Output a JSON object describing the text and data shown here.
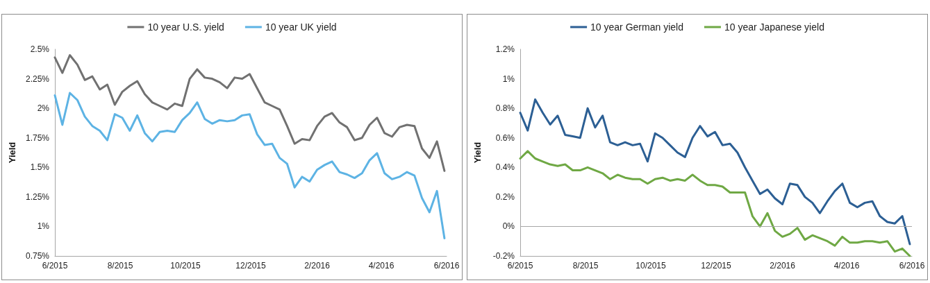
{
  "chart_data": [
    {
      "type": "line",
      "ylabel": "Yield",
      "legend": "top",
      "line_style": "solid",
      "x": [
        "2015-06-01",
        "2015-06-08",
        "2015-06-15",
        "2015-06-22",
        "2015-06-29",
        "2015-07-06",
        "2015-07-13",
        "2015-07-20",
        "2015-07-27",
        "2015-08-03",
        "2015-08-10",
        "2015-08-17",
        "2015-08-24",
        "2015-08-31",
        "2015-09-07",
        "2015-09-14",
        "2015-09-21",
        "2015-09-28",
        "2015-10-05",
        "2015-10-12",
        "2015-10-19",
        "2015-10-26",
        "2015-11-02",
        "2015-11-09",
        "2015-11-16",
        "2015-11-23",
        "2015-11-30",
        "2015-12-07",
        "2015-12-14",
        "2015-12-21",
        "2015-12-28",
        "2016-01-04",
        "2016-01-11",
        "2016-01-18",
        "2016-01-25",
        "2016-02-01",
        "2016-02-08",
        "2016-02-15",
        "2016-02-22",
        "2016-02-29",
        "2016-03-07",
        "2016-03-14",
        "2016-03-21",
        "2016-03-28",
        "2016-04-04",
        "2016-04-11",
        "2016-04-18",
        "2016-04-25",
        "2016-05-02",
        "2016-05-09",
        "2016-05-16",
        "2016-05-23",
        "2016-05-30"
      ],
      "xlim": [
        "2015-06",
        "2016-06"
      ],
      "xticks": [
        {
          "value": "2015-06",
          "label": "6/2015"
        },
        {
          "value": "2015-08",
          "label": "8/2015"
        },
        {
          "value": "2015-10",
          "label": "10/2015"
        },
        {
          "value": "2015-12",
          "label": "12/2015"
        },
        {
          "value": "2016-02",
          "label": "2/2016"
        },
        {
          "value": "2016-04",
          "label": "4/2016"
        },
        {
          "value": "2016-06",
          "label": "6/2016"
        }
      ],
      "ylim": [
        0.75,
        2.5
      ],
      "yticks": [
        {
          "value": 0.75,
          "label": "0.75%"
        },
        {
          "value": 1,
          "label": "1%"
        },
        {
          "value": 1.25,
          "label": "1.25%"
        },
        {
          "value": 1.5,
          "label": "1.5%"
        },
        {
          "value": 1.75,
          "label": "1.75%"
        },
        {
          "value": 2,
          "label": "2%"
        },
        {
          "value": 2.25,
          "label": "2.25%"
        },
        {
          "value": 2.5,
          "label": "2.5%"
        }
      ],
      "series": [
        {
          "name": "10 year U.S. yield",
          "color": "#717171",
          "values": [
            2.43,
            2.3,
            2.45,
            2.37,
            2.24,
            2.27,
            2.16,
            2.2,
            2.03,
            2.14,
            2.19,
            2.23,
            2.12,
            2.05,
            2.02,
            1.99,
            2.04,
            2.02,
            2.25,
            2.33,
            2.26,
            2.25,
            2.22,
            2.17,
            2.26,
            2.25,
            2.29,
            2.17,
            2.05,
            2.02,
            1.99,
            1.85,
            1.7,
            1.74,
            1.73,
            1.85,
            1.93,
            1.96,
            1.88,
            1.84,
            1.73,
            1.75,
            1.86,
            1.92,
            1.79,
            1.76,
            1.84,
            1.86,
            1.85,
            1.66,
            1.58,
            1.72,
            1.47
          ]
        },
        {
          "name": "10 year UK yield",
          "color": "#5db3e4",
          "values": [
            2.11,
            1.86,
            2.13,
            2.07,
            1.93,
            1.85,
            1.81,
            1.73,
            1.95,
            1.92,
            1.81,
            1.94,
            1.79,
            1.72,
            1.8,
            1.81,
            1.8,
            1.9,
            1.96,
            2.05,
            1.91,
            1.87,
            1.9,
            1.89,
            1.9,
            1.94,
            1.95,
            1.78,
            1.69,
            1.7,
            1.58,
            1.53,
            1.33,
            1.42,
            1.38,
            1.48,
            1.52,
            1.55,
            1.46,
            1.44,
            1.41,
            1.45,
            1.56,
            1.62,
            1.45,
            1.4,
            1.42,
            1.46,
            1.43,
            1.24,
            1.12,
            1.3,
            0.9
          ]
        }
      ]
    },
    {
      "type": "line",
      "ylabel": "Yield",
      "legend": "top",
      "line_style": "solid",
      "x": [
        "2015-06-01",
        "2015-06-08",
        "2015-06-15",
        "2015-06-22",
        "2015-06-29",
        "2015-07-06",
        "2015-07-13",
        "2015-07-20",
        "2015-07-27",
        "2015-08-03",
        "2015-08-10",
        "2015-08-17",
        "2015-08-24",
        "2015-08-31",
        "2015-09-07",
        "2015-09-14",
        "2015-09-21",
        "2015-09-28",
        "2015-10-05",
        "2015-10-12",
        "2015-10-19",
        "2015-10-26",
        "2015-11-02",
        "2015-11-09",
        "2015-11-16",
        "2015-11-23",
        "2015-11-30",
        "2015-12-07",
        "2015-12-14",
        "2015-12-21",
        "2015-12-28",
        "2016-01-04",
        "2016-01-11",
        "2016-01-18",
        "2016-01-25",
        "2016-02-01",
        "2016-02-08",
        "2016-02-15",
        "2016-02-22",
        "2016-02-29",
        "2016-03-07",
        "2016-03-14",
        "2016-03-21",
        "2016-03-28",
        "2016-04-04",
        "2016-04-11",
        "2016-04-18",
        "2016-04-25",
        "2016-05-02",
        "2016-05-09",
        "2016-05-16",
        "2016-05-23",
        "2016-05-30"
      ],
      "xlim": [
        "2015-06",
        "2016-06"
      ],
      "xticks": [
        {
          "value": "2015-06",
          "label": "6/2015"
        },
        {
          "value": "2015-08",
          "label": "8/2015"
        },
        {
          "value": "2015-10",
          "label": "10/2015"
        },
        {
          "value": "2015-12",
          "label": "12/2015"
        },
        {
          "value": "2016-02",
          "label": "2/2016"
        },
        {
          "value": "2016-04",
          "label": "4/2016"
        },
        {
          "value": "2016-06",
          "label": "6/2016"
        }
      ],
      "ylim": [
        -0.2,
        1.2
      ],
      "yticks": [
        {
          "value": -0.2,
          "label": "-0.2%"
        },
        {
          "value": 0,
          "label": "0%"
        },
        {
          "value": 0.2,
          "label": "0.2%"
        },
        {
          "value": 0.4,
          "label": "0.4%"
        },
        {
          "value": 0.6,
          "label": "0.6%"
        },
        {
          "value": 0.8,
          "label": "0.8%"
        },
        {
          "value": 1,
          "label": "1%"
        },
        {
          "value": 1.2,
          "label": "1.2%"
        }
      ],
      "ref_lines": [
        {
          "axis": "y",
          "value": 0,
          "color": "#a6a6a6"
        }
      ],
      "series": [
        {
          "name": "10 year German yield",
          "color": "#2c5f94",
          "values": [
            0.77,
            0.65,
            0.86,
            0.77,
            0.69,
            0.75,
            0.62,
            0.61,
            0.6,
            0.8,
            0.67,
            0.75,
            0.57,
            0.55,
            0.57,
            0.55,
            0.56,
            0.44,
            0.63,
            0.6,
            0.55,
            0.5,
            0.47,
            0.6,
            0.68,
            0.61,
            0.64,
            0.55,
            0.56,
            0.5,
            0.4,
            0.31,
            0.22,
            0.25,
            0.19,
            0.15,
            0.29,
            0.28,
            0.2,
            0.16,
            0.09,
            0.17,
            0.24,
            0.29,
            0.16,
            0.13,
            0.16,
            0.17,
            0.07,
            0.03,
            0.02,
            0.07,
            -0.12
          ]
        },
        {
          "name": "10 year Japanese yield",
          "color": "#6fa844",
          "values": [
            0.46,
            0.51,
            0.46,
            0.44,
            0.42,
            0.41,
            0.42,
            0.38,
            0.38,
            0.4,
            0.38,
            0.36,
            0.32,
            0.35,
            0.33,
            0.32,
            0.32,
            0.29,
            0.32,
            0.33,
            0.31,
            0.32,
            0.31,
            0.35,
            0.31,
            0.28,
            0.28,
            0.27,
            0.23,
            0.23,
            0.23,
            0.07,
            0.0,
            0.09,
            -0.03,
            -0.07,
            -0.05,
            -0.01,
            -0.09,
            -0.06,
            -0.08,
            -0.1,
            -0.13,
            -0.07,
            -0.11,
            -0.11,
            -0.1,
            -0.1,
            -0.11,
            -0.1,
            -0.17,
            -0.15,
            -0.2
          ]
        }
      ]
    }
  ]
}
